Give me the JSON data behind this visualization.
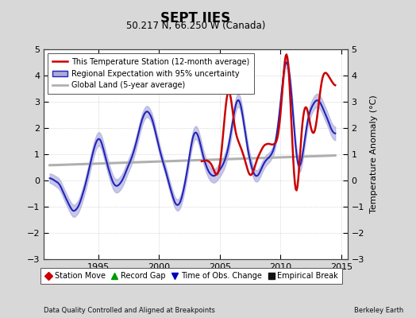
{
  "title": "SEPT IIES",
  "subtitle": "50.217 N, 66.250 W (Canada)",
  "ylabel": "Temperature Anomaly (°C)",
  "xlim": [
    1990.5,
    2015.5
  ],
  "ylim": [
    -3,
    5
  ],
  "yticks": [
    -3,
    -2,
    -1,
    0,
    1,
    2,
    3,
    4,
    5
  ],
  "xticks": [
    1995,
    2000,
    2005,
    2010,
    2015
  ],
  "bg_color": "#d8d8d8",
  "plot_bg_color": "#ffffff",
  "grid_color": "#bbbbbb",
  "footer_left": "Data Quality Controlled and Aligned at Breakpoints",
  "footer_right": "Berkeley Earth",
  "legend1_entries": [
    {
      "label": "This Temperature Station (12-month average)",
      "color": "#cc0000",
      "lw": 1.8
    },
    {
      "label": "Regional Expectation with 95% uncertainty",
      "color": "#2222bb",
      "lw": 1.5,
      "fill": "#aaaadd"
    },
    {
      "label": "Global Land (5-year average)",
      "color": "#b0b0b0",
      "lw": 2.2
    }
  ],
  "legend2_entries": [
    {
      "label": "Station Move",
      "marker": "D",
      "color": "#cc0000"
    },
    {
      "label": "Record Gap",
      "marker": "^",
      "color": "#009900"
    },
    {
      "label": "Time of Obs. Change",
      "marker": "v",
      "color": "#0000bb"
    },
    {
      "label": "Empirical Break",
      "marker": "s",
      "color": "#111111"
    }
  ]
}
